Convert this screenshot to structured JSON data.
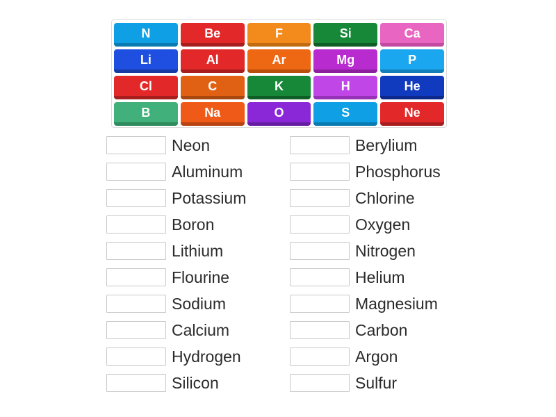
{
  "palette": {
    "blue_light": {
      "bg": "#0e9fe5",
      "shadow": "#0a7bb1"
    },
    "red": {
      "bg": "#e22828",
      "shadow": "#a81d1d"
    },
    "orange": {
      "bg": "#f28a1c",
      "shadow": "#c26c11"
    },
    "green_dark": {
      "bg": "#178838",
      "shadow": "#0f5e26"
    },
    "pink": {
      "bg": "#e866c2",
      "shadow": "#c24aa1"
    },
    "blue_mid": {
      "bg": "#1f4fe0",
      "shadow": "#1639a6"
    },
    "orange_deep": {
      "bg": "#ee6712",
      "shadow": "#b84f0d"
    },
    "magenta": {
      "bg": "#b82ccf",
      "shadow": "#8c1f9e"
    },
    "green_teal": {
      "bg": "#41b07a",
      "shadow": "#2f8a5e"
    },
    "orange_dark": {
      "bg": "#e06114",
      "shadow": "#a8470e"
    },
    "purple": {
      "bg": "#8a28d8",
      "shadow": "#671da3"
    },
    "blue_dark": {
      "bg": "#113bbf",
      "shadow": "#0b288a"
    },
    "orange_mid": {
      "bg": "#f05a18",
      "shadow": "#b94311"
    },
    "violet": {
      "bg": "#c146e8",
      "shadow": "#9632b8"
    },
    "blue_vivid": {
      "bg": "#1ba7f0",
      "shadow": "#1380b9"
    }
  },
  "tiles": [
    [
      {
        "label": "N",
        "color": "blue_light"
      },
      {
        "label": "Be",
        "color": "red"
      },
      {
        "label": "F",
        "color": "orange"
      },
      {
        "label": "Si",
        "color": "green_dark"
      },
      {
        "label": "Ca",
        "color": "pink"
      }
    ],
    [
      {
        "label": "Li",
        "color": "blue_mid"
      },
      {
        "label": "Al",
        "color": "red"
      },
      {
        "label": "Ar",
        "color": "orange_deep"
      },
      {
        "label": "Mg",
        "color": "magenta"
      },
      {
        "label": "P",
        "color": "blue_vivid"
      }
    ],
    [
      {
        "label": "Cl",
        "color": "red"
      },
      {
        "label": "C",
        "color": "orange_dark"
      },
      {
        "label": "K",
        "color": "green_dark"
      },
      {
        "label": "H",
        "color": "violet"
      },
      {
        "label": "He",
        "color": "blue_dark"
      }
    ],
    [
      {
        "label": "B",
        "color": "green_teal"
      },
      {
        "label": "Na",
        "color": "orange_mid"
      },
      {
        "label": "O",
        "color": "purple"
      },
      {
        "label": "S",
        "color": "blue_light"
      },
      {
        "label": "Ne",
        "color": "red"
      }
    ]
  ],
  "answers": {
    "left": [
      "Neon",
      "Aluminum",
      "Potassium",
      "Boron",
      "Lithium",
      "Flourine",
      "Sodium",
      "Calcium",
      "Hydrogen",
      "Silicon"
    ],
    "right": [
      "Berylium",
      "Phosphorus",
      "Chlorine",
      "Oxygen",
      "Nitrogen",
      "Helium",
      "Magnesium",
      "Carbon",
      "Argon",
      "Sulfur"
    ]
  }
}
